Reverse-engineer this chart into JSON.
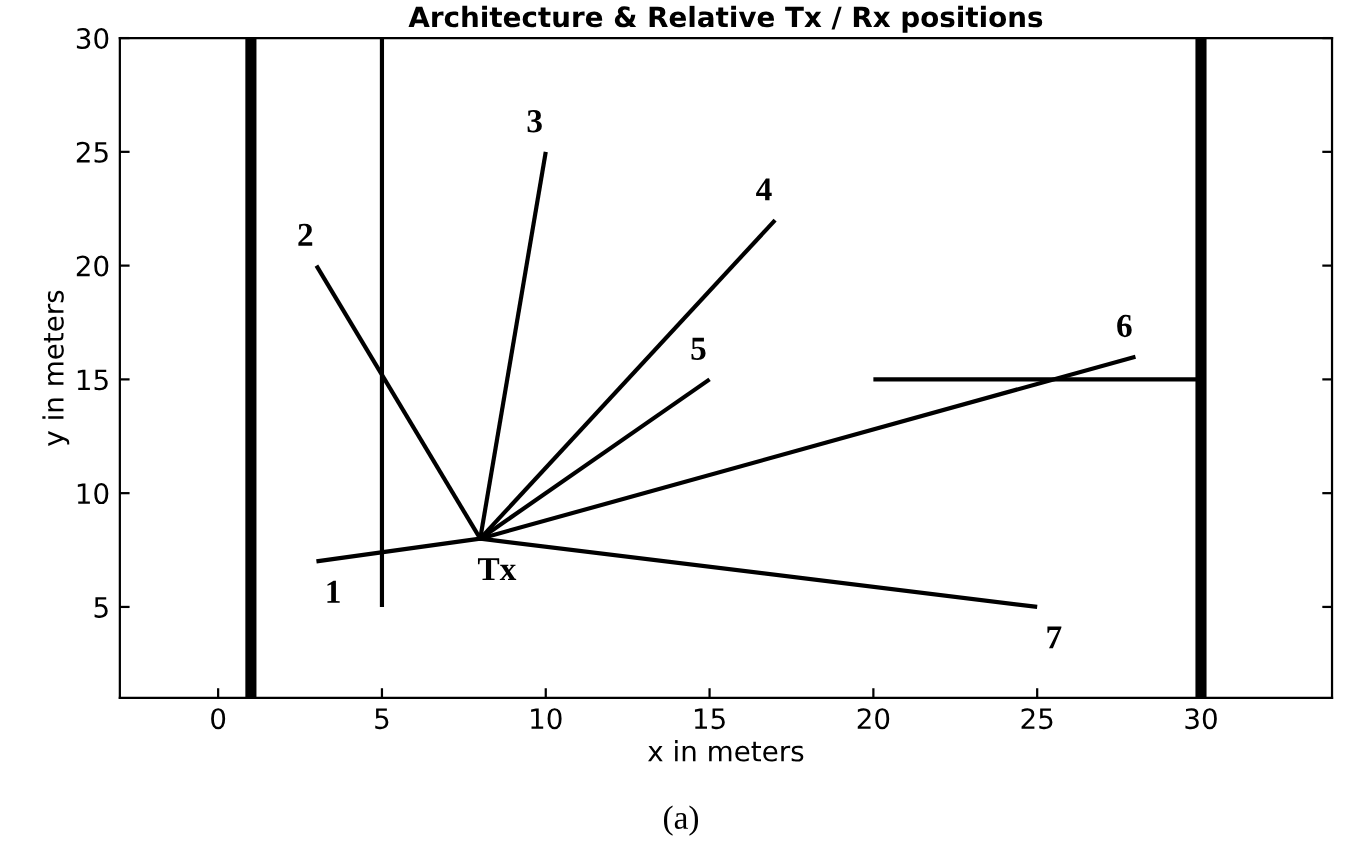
{
  "chart_data": {
    "type": "line",
    "title": "Architecture & Relative Tx / Rx positions",
    "xlabel": "x in meters",
    "ylabel": "y in meters",
    "xlim": [
      -3,
      34
    ],
    "ylim": [
      1,
      30
    ],
    "xticks": [
      0,
      5,
      10,
      15,
      20,
      25,
      30
    ],
    "yticks": [
      5,
      10,
      15,
      20,
      25,
      30
    ],
    "grid": false,
    "legend": false,
    "marker": "none",
    "line_style": "solid",
    "ref_lines": [
      {
        "axis": "x",
        "value": 1,
        "color": "#000000"
      },
      {
        "axis": "x",
        "value": 30,
        "color": "#000000"
      }
    ],
    "series": [
      {
        "color": "#000000",
        "x": [
          5,
          5
        ],
        "values": [
          5,
          30
        ]
      },
      {
        "color": "#000000",
        "x": [
          20,
          30
        ],
        "values": [
          15,
          15
        ]
      },
      {
        "color": "#000000",
        "x": [
          8,
          3
        ],
        "values": [
          8,
          20
        ]
      },
      {
        "color": "#000000",
        "x": [
          8,
          10
        ],
        "values": [
          8,
          25
        ]
      },
      {
        "color": "#000000",
        "x": [
          8,
          17
        ],
        "values": [
          8,
          22
        ]
      },
      {
        "color": "#000000",
        "x": [
          8,
          15
        ],
        "values": [
          8,
          15
        ]
      },
      {
        "color": "#000000",
        "x": [
          8,
          28
        ],
        "values": [
          8,
          16
        ]
      },
      {
        "color": "#000000",
        "x": [
          3,
          8,
          25
        ],
        "values": [
          7,
          8,
          5
        ]
      }
    ],
    "annotations": [
      {
        "text": "1",
        "x": 3,
        "y": 7
      },
      {
        "text": "2",
        "x": 3,
        "y": 20
      },
      {
        "text": "3",
        "x": 10,
        "y": 25
      },
      {
        "text": "4",
        "x": 17,
        "y": 22
      },
      {
        "text": "5",
        "x": 15,
        "y": 15
      },
      {
        "text": "6",
        "x": 28,
        "y": 16
      },
      {
        "text": "7",
        "x": 25,
        "y": 5
      },
      {
        "text": "Tx",
        "x": 8,
        "y": 8
      },
      "(a)"
    ]
  }
}
